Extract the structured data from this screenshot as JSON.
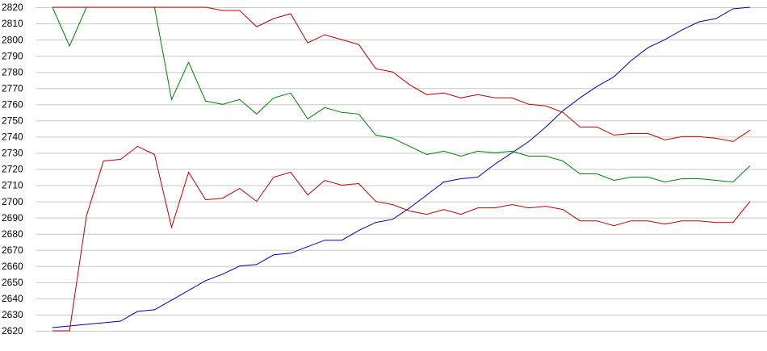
{
  "chart_data": {
    "type": "line",
    "ylim": [
      2620,
      2820
    ],
    "yticks": [
      2620,
      2630,
      2640,
      2650,
      2660,
      2670,
      2680,
      2690,
      2700,
      2710,
      2720,
      2730,
      2740,
      2750,
      2760,
      2770,
      2780,
      2790,
      2800,
      2810,
      2820
    ],
    "grid": true,
    "series": [
      {
        "color": "#0000b0",
        "values": [
          2622,
          2623,
          2624,
          2625,
          2626,
          2632,
          2633,
          2639,
          2645,
          2651,
          2655,
          2660,
          2661,
          2667,
          2668,
          2672,
          2676,
          2676,
          2682,
          2687,
          2689,
          2696,
          2704,
          2712,
          2714,
          2715,
          2723,
          2730,
          2737,
          2746,
          2756,
          2764,
          2771,
          2777,
          2787,
          2795,
          2800,
          2806,
          2811,
          2813,
          2819,
          2820
        ]
      },
      {
        "color": "#008000",
        "values": [
          2820,
          2796,
          2820,
          2820,
          2820,
          2820,
          2820,
          2763,
          2786,
          2762,
          2760,
          2763,
          2754,
          2764,
          2767,
          2751,
          2758,
          2755,
          2754,
          2741,
          2739,
          2734,
          2729,
          2731,
          2728,
          2731,
          2730,
          2731,
          2728,
          2728,
          2725,
          2717,
          2717,
          2713,
          2715,
          2715,
          2712,
          2714,
          2714,
          2713,
          2712,
          2722
        ]
      },
      {
        "color": "#c00000",
        "values": [
          2820,
          2820,
          2820,
          2820,
          2820,
          2820,
          2820,
          2820,
          2820,
          2820,
          2818,
          2818,
          2808,
          2813,
          2816,
          2798,
          2803,
          2800,
          2797,
          2782,
          2780,
          2772,
          2766,
          2767,
          2764,
          2766,
          2764,
          2764,
          2760,
          2759,
          2755,
          2746,
          2746,
          2741,
          2742,
          2742,
          2738,
          2740,
          2740,
          2739,
          2737,
          2744
        ]
      },
      {
        "color": "#c00000",
        "values": [
          2620,
          2620,
          2691,
          2725,
          2726,
          2734,
          2729,
          2684,
          2718,
          2701,
          2702,
          2708,
          2700,
          2715,
          2718,
          2704,
          2713,
          2710,
          2711,
          2700,
          2698,
          2694,
          2692,
          2695,
          2692,
          2696,
          2696,
          2698,
          2696,
          2697,
          2695,
          2688,
          2688,
          2685,
          2688,
          2688,
          2686,
          2688,
          2688,
          2687,
          2687,
          2700
        ]
      }
    ]
  }
}
